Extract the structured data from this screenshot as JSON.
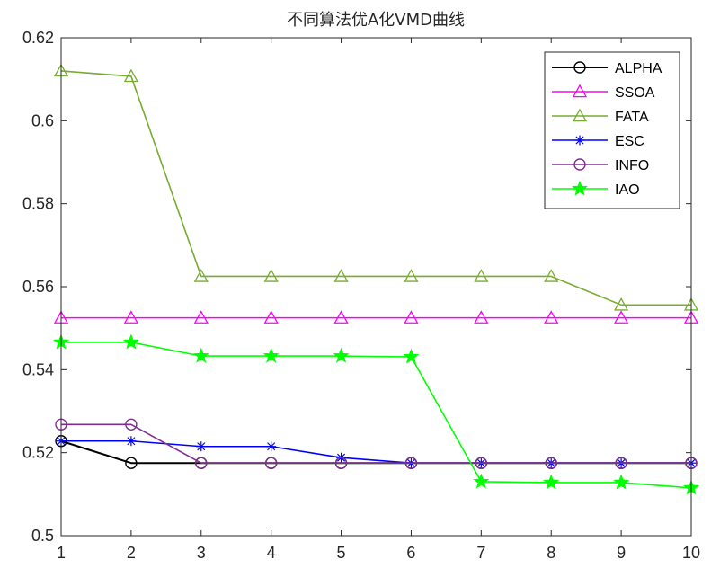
{
  "chart_data": {
    "type": "line",
    "title": "不同算法优A化VMD曲线",
    "xlabel": "",
    "ylabel": "",
    "x": [
      1,
      2,
      3,
      4,
      5,
      6,
      7,
      8,
      9,
      10
    ],
    "xlim": [
      1,
      10
    ],
    "ylim": [
      0.5,
      0.62
    ],
    "xticks": [
      "1",
      "2",
      "3",
      "4",
      "5",
      "6",
      "7",
      "8",
      "9",
      "10"
    ],
    "yticks": [
      "0.5",
      "0.52",
      "0.54",
      "0.56",
      "0.58",
      "0.6",
      "0.62"
    ],
    "grid": false,
    "legend_position": "top-right",
    "series": [
      {
        "name": "ALPHA",
        "color": "#000000",
        "marker": "circle",
        "values": [
          0.5228,
          0.5175,
          0.5175,
          0.5175,
          0.5175,
          0.5175,
          0.5175,
          0.5175,
          0.5175,
          0.5175
        ]
      },
      {
        "name": "SSOA",
        "color": "#ff00ff",
        "marker": "triangle",
        "values": [
          0.5525,
          0.5525,
          0.5525,
          0.5525,
          0.5525,
          0.5525,
          0.5525,
          0.5525,
          0.5525,
          0.5525
        ]
      },
      {
        "name": "FATA",
        "color": "#77ac30",
        "marker": "triangle",
        "values": [
          0.612,
          0.6107,
          0.5625,
          0.5625,
          0.5625,
          0.5625,
          0.5625,
          0.5625,
          0.5556,
          0.5556
        ]
      },
      {
        "name": "ESC",
        "color": "#0000ff",
        "marker": "asterisk",
        "values": [
          0.5228,
          0.5228,
          0.5215,
          0.5215,
          0.5188,
          0.5175,
          0.5175,
          0.5175,
          0.5175,
          0.5175
        ]
      },
      {
        "name": "INFO",
        "color": "#7e2f8e",
        "marker": "circle",
        "values": [
          0.5268,
          0.5268,
          0.5175,
          0.5175,
          0.5175,
          0.5175,
          0.5175,
          0.5175,
          0.5175,
          0.5175
        ]
      },
      {
        "name": "IAO",
        "color": "#00ff00",
        "marker": "star",
        "values": [
          0.5466,
          0.5466,
          0.5433,
          0.5433,
          0.5433,
          0.5431,
          0.513,
          0.5128,
          0.5128,
          0.5115
        ]
      }
    ]
  }
}
